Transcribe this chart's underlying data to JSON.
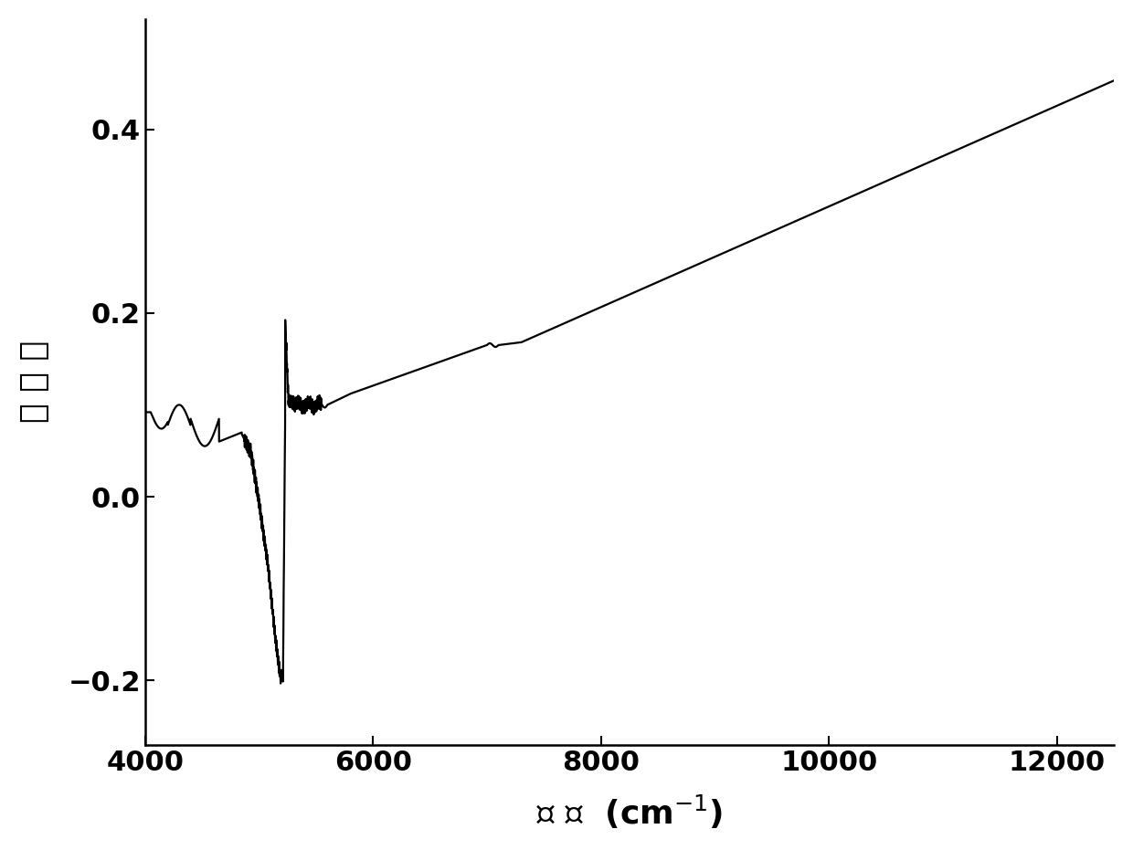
{
  "xmin": 4000,
  "xmax": 12500,
  "ymin": -0.27,
  "ymax": 0.52,
  "xticks": [
    4000,
    6000,
    8000,
    10000,
    12000
  ],
  "yticks": [
    -0.2,
    0.0,
    0.2,
    0.4
  ],
  "xlabel": "波 数  (cm$^{-1}$)",
  "ylabel": "吸 光 度",
  "line_color": "#000000",
  "line_width": 1.6,
  "background_color": "#ffffff",
  "tick_fontsize": 22,
  "label_fontsize": 26
}
